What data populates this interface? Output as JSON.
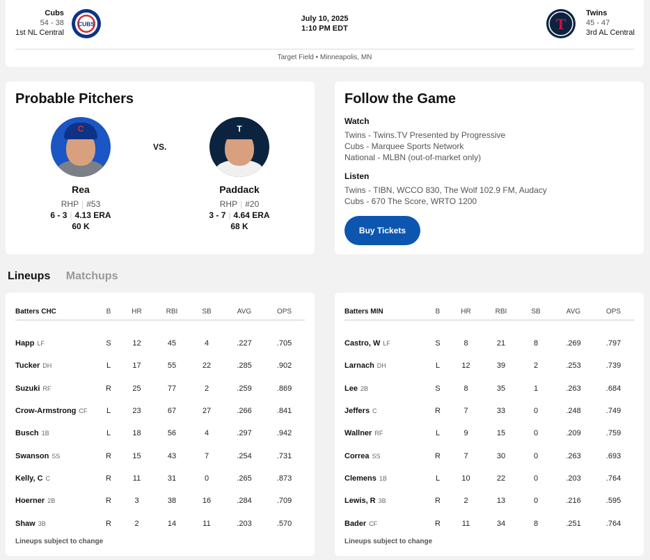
{
  "header": {
    "away": {
      "name": "Cubs",
      "record": "54 - 38",
      "standing": "1st NL Central",
      "logo_text": "CUBS",
      "color": "#0E3386"
    },
    "home": {
      "name": "Twins",
      "record": "45 - 47",
      "standing": "3rd AL Central",
      "logo_text": "T",
      "color": "#0C2340"
    },
    "date": "July 10, 2025",
    "time": "1:10 PM EDT",
    "venue": "Target Field • Minneapolis, MN"
  },
  "pitchers": {
    "title": "Probable Pitchers",
    "vs": "vs.",
    "away": {
      "name": "Rea",
      "hand": "RHP",
      "number": "#53",
      "record": "6 - 3",
      "era": "4.13 ERA",
      "k": "60 K"
    },
    "home": {
      "name": "Paddack",
      "hand": "RHP",
      "number": "#20",
      "record": "3 - 7",
      "era": "4.64 ERA",
      "k": "68 K"
    }
  },
  "follow": {
    "title": "Follow the Game",
    "watch_label": "Watch",
    "watch": [
      "Twins - Twins.TV Presented by Progressive",
      "Cubs - Marquee Sports Network",
      "National - MLBN (out-of-market only)"
    ],
    "listen_label": "Listen",
    "listen": [
      "Twins - TIBN, WCCO 830, The Wolf 102.9 FM, Audacy",
      "Cubs - 670 The Score, WRTO 1200"
    ],
    "buy_label": "Buy Tickets"
  },
  "tabs": [
    "Lineups",
    "Matchups"
  ],
  "lineups": [
    {
      "header": [
        "Batters CHC",
        "B",
        "HR",
        "RBI",
        "SB",
        "AVG",
        "OPS"
      ],
      "rows": [
        {
          "name": "Happ",
          "pos": "LF",
          "b": "S",
          "hr": "12",
          "rbi": "45",
          "sb": "4",
          "avg": ".227",
          "ops": ".705"
        },
        {
          "name": "Tucker",
          "pos": "DH",
          "b": "L",
          "hr": "17",
          "rbi": "55",
          "sb": "22",
          "avg": ".285",
          "ops": ".902"
        },
        {
          "name": "Suzuki",
          "pos": "RF",
          "b": "R",
          "hr": "25",
          "rbi": "77",
          "sb": "2",
          "avg": ".259",
          "ops": ".869"
        },
        {
          "name": "Crow-Armstrong",
          "pos": "CF",
          "b": "L",
          "hr": "23",
          "rbi": "67",
          "sb": "27",
          "avg": ".266",
          "ops": ".841"
        },
        {
          "name": "Busch",
          "pos": "1B",
          "b": "L",
          "hr": "18",
          "rbi": "56",
          "sb": "4",
          "avg": ".297",
          "ops": ".942"
        },
        {
          "name": "Swanson",
          "pos": "SS",
          "b": "R",
          "hr": "15",
          "rbi": "43",
          "sb": "7",
          "avg": ".254",
          "ops": ".731"
        },
        {
          "name": "Kelly, C",
          "pos": "C",
          "b": "R",
          "hr": "11",
          "rbi": "31",
          "sb": "0",
          "avg": ".265",
          "ops": ".873"
        },
        {
          "name": "Hoerner",
          "pos": "2B",
          "b": "R",
          "hr": "3",
          "rbi": "38",
          "sb": "16",
          "avg": ".284",
          "ops": ".709"
        },
        {
          "name": "Shaw",
          "pos": "3B",
          "b": "R",
          "hr": "2",
          "rbi": "14",
          "sb": "11",
          "avg": ".203",
          "ops": ".570"
        }
      ],
      "note": "Lineups subject to change"
    },
    {
      "header": [
        "Batters MIN",
        "B",
        "HR",
        "RBI",
        "SB",
        "AVG",
        "OPS"
      ],
      "rows": [
        {
          "name": "Castro, W",
          "pos": "LF",
          "b": "S",
          "hr": "8",
          "rbi": "21",
          "sb": "8",
          "avg": ".269",
          "ops": ".797"
        },
        {
          "name": "Larnach",
          "pos": "DH",
          "b": "L",
          "hr": "12",
          "rbi": "39",
          "sb": "2",
          "avg": ".253",
          "ops": ".739"
        },
        {
          "name": "Lee",
          "pos": "2B",
          "b": "S",
          "hr": "8",
          "rbi": "35",
          "sb": "1",
          "avg": ".263",
          "ops": ".684"
        },
        {
          "name": "Jeffers",
          "pos": "C",
          "b": "R",
          "hr": "7",
          "rbi": "33",
          "sb": "0",
          "avg": ".248",
          "ops": ".749"
        },
        {
          "name": "Wallner",
          "pos": "RF",
          "b": "L",
          "hr": "9",
          "rbi": "15",
          "sb": "0",
          "avg": ".209",
          "ops": ".759"
        },
        {
          "name": "Correa",
          "pos": "SS",
          "b": "R",
          "hr": "7",
          "rbi": "30",
          "sb": "0",
          "avg": ".263",
          "ops": ".693"
        },
        {
          "name": "Clemens",
          "pos": "1B",
          "b": "L",
          "hr": "10",
          "rbi": "22",
          "sb": "0",
          "avg": ".203",
          "ops": ".764"
        },
        {
          "name": "Lewis, R",
          "pos": "3B",
          "b": "R",
          "hr": "2",
          "rbi": "13",
          "sb": "0",
          "avg": ".216",
          "ops": ".595"
        },
        {
          "name": "Bader",
          "pos": "CF",
          "b": "R",
          "hr": "11",
          "rbi": "34",
          "sb": "8",
          "avg": ".251",
          "ops": ".764"
        }
      ],
      "note": "Lineups subject to change"
    }
  ]
}
